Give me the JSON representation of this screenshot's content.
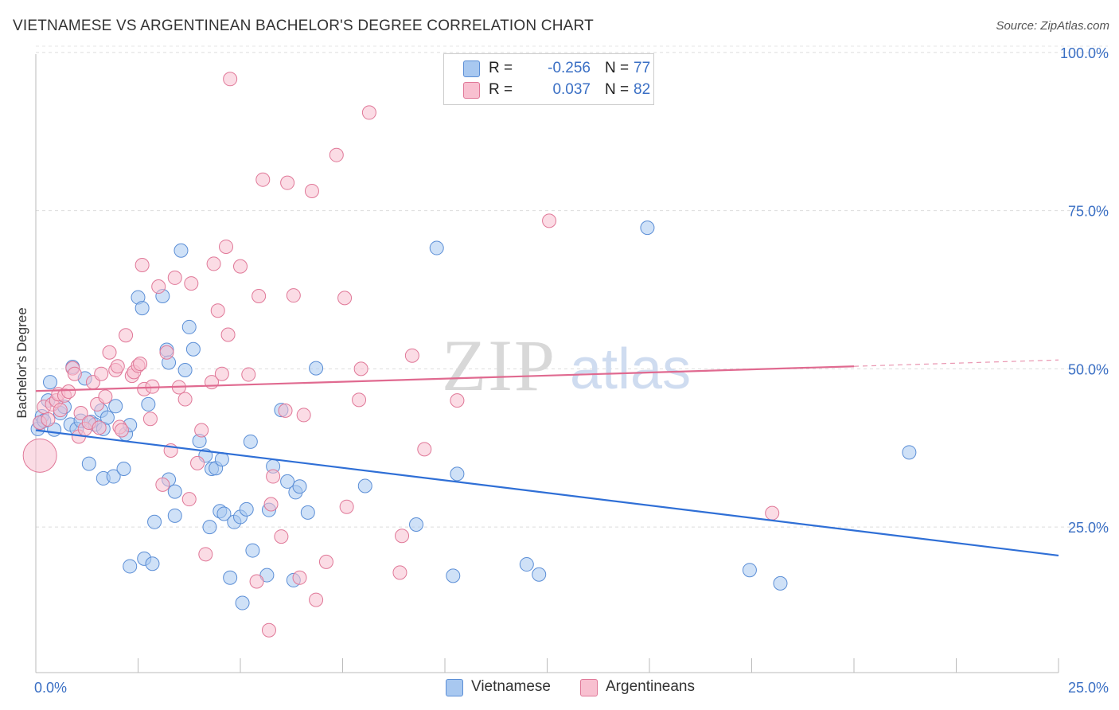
{
  "title": "VIETNAMESE VS ARGENTINEAN BACHELOR'S DEGREE CORRELATION CHART",
  "source": "Source: ZipAtlas.com",
  "watermark": {
    "zip": "ZIP",
    "atlas": "atlas"
  },
  "legend": {
    "r_label": "R =",
    "n_label": "N =",
    "rows": [
      {
        "name": "Vietnamese",
        "r": "-0.256",
        "n": "77",
        "fill": "#a8c8f0",
        "stroke": "#5b8ed6"
      },
      {
        "name": "Argentineans",
        "r": "0.037",
        "n": "82",
        "fill": "#f8c0d0",
        "stroke": "#e07898"
      }
    ]
  },
  "chart_data": {
    "type": "scatter",
    "title": "VIETNAMESE VS ARGENTINEAN BACHELOR'S DEGREE CORRELATION CHART",
    "xlabel": "",
    "ylabel": "Bachelor's Degree",
    "xlim": [
      0,
      25
    ],
    "ylim": [
      2,
      102
    ],
    "x_tick_labels": [
      {
        "value": 0,
        "label": "0.0%"
      },
      {
        "value": 25,
        "label": "25.0%"
      }
    ],
    "y_ticks": [
      {
        "value": 25,
        "label": "25.0%"
      },
      {
        "value": 50,
        "label": "50.0%"
      },
      {
        "value": 75,
        "label": "75.0%"
      },
      {
        "value": 100,
        "label": "100.0%"
      }
    ],
    "series": [
      {
        "name": "Vietnamese",
        "color": "#5b8ed6",
        "fill": "#a8c8f0",
        "trend": {
          "x0": 0,
          "y0": 40.3,
          "x1": 25,
          "y1": 20.5,
          "color": "#2f6fd6"
        },
        "points": [
          [
            0.05,
            40.5
          ],
          [
            0.1,
            41.5
          ],
          [
            0.15,
            42.5
          ],
          [
            0.2,
            41.8
          ],
          [
            0.3,
            45
          ],
          [
            0.35,
            47.9
          ],
          [
            0.45,
            40.4
          ],
          [
            0.6,
            43
          ],
          [
            0.7,
            44
          ],
          [
            0.85,
            41.2
          ],
          [
            0.9,
            50.3
          ],
          [
            1.0,
            40.5
          ],
          [
            1.1,
            41.8
          ],
          [
            1.2,
            48.5
          ],
          [
            1.3,
            35
          ],
          [
            1.35,
            41.6
          ],
          [
            1.45,
            41.2
          ],
          [
            1.6,
            43.4
          ],
          [
            1.65,
            40.5
          ],
          [
            1.75,
            42.3
          ],
          [
            1.65,
            32.7
          ],
          [
            1.9,
            33
          ],
          [
            1.95,
            44.1
          ],
          [
            2.15,
            34.2
          ],
          [
            2.2,
            39.7
          ],
          [
            2.3,
            41.1
          ],
          [
            2.3,
            18.8
          ],
          [
            2.5,
            61.3
          ],
          [
            2.6,
            59.6
          ],
          [
            2.65,
            20
          ],
          [
            2.75,
            44.4
          ],
          [
            2.85,
            19.2
          ],
          [
            2.9,
            25.8
          ],
          [
            3.1,
            61.5
          ],
          [
            3.2,
            53
          ],
          [
            3.25,
            51
          ],
          [
            3.25,
            32.5
          ],
          [
            3.4,
            30.6
          ],
          [
            3.4,
            26.8
          ],
          [
            3.55,
            68.7
          ],
          [
            3.65,
            49.8
          ],
          [
            3.75,
            56.6
          ],
          [
            3.85,
            53.1
          ],
          [
            4.0,
            38.6
          ],
          [
            4.15,
            36.3
          ],
          [
            4.25,
            25
          ],
          [
            4.3,
            34.2
          ],
          [
            4.4,
            34.3
          ],
          [
            4.5,
            27.5
          ],
          [
            4.55,
            35.7
          ],
          [
            4.6,
            27.1
          ],
          [
            4.75,
            17
          ],
          [
            4.85,
            25.8
          ],
          [
            5.0,
            26.6
          ],
          [
            5.05,
            13
          ],
          [
            5.15,
            27.8
          ],
          [
            5.25,
            38.5
          ],
          [
            5.3,
            21.3
          ],
          [
            5.65,
            17.4
          ],
          [
            5.7,
            27.7
          ],
          [
            5.8,
            34.6
          ],
          [
            6.0,
            43.5
          ],
          [
            6.15,
            32.2
          ],
          [
            6.3,
            16.6
          ],
          [
            6.35,
            30.5
          ],
          [
            6.45,
            31.4
          ],
          [
            6.65,
            27.3
          ],
          [
            6.85,
            50.1
          ],
          [
            8.05,
            31.5
          ],
          [
            9.3,
            25.4
          ],
          [
            9.8,
            69.1
          ],
          [
            10.2,
            17.3
          ],
          [
            10.3,
            33.4
          ],
          [
            12.0,
            19.1
          ],
          [
            12.3,
            17.5
          ],
          [
            14.95,
            72.3
          ],
          [
            17.45,
            18.2
          ],
          [
            18.2,
            16.1
          ],
          [
            21.35,
            36.8
          ]
        ]
      },
      {
        "name": "Argentineans",
        "color": "#e07898",
        "fill": "#f8c0d0",
        "trend": {
          "x0": 0,
          "y0": 46.5,
          "x1": 20,
          "y1": 50.4,
          "dash_to_x": 25,
          "dash_to_y": 51.4,
          "color": "#e06a90"
        },
        "big_point": {
          "x": 0.1,
          "y": 36.3
        },
        "points": [
          [
            0.1,
            41.5
          ],
          [
            0.2,
            44
          ],
          [
            0.3,
            42
          ],
          [
            0.4,
            44.4
          ],
          [
            0.5,
            45
          ],
          [
            0.55,
            46
          ],
          [
            0.6,
            43.5
          ],
          [
            0.7,
            45.8
          ],
          [
            0.8,
            46.4
          ],
          [
            0.9,
            50.1
          ],
          [
            0.95,
            49.2
          ],
          [
            1.05,
            39.3
          ],
          [
            1.1,
            43
          ],
          [
            1.2,
            40.5
          ],
          [
            1.3,
            41.5
          ],
          [
            1.4,
            47.9
          ],
          [
            1.5,
            44.4
          ],
          [
            1.55,
            40.7
          ],
          [
            1.6,
            49.2
          ],
          [
            1.7,
            45.6
          ],
          [
            1.8,
            52.6
          ],
          [
            1.95,
            49.8
          ],
          [
            2.0,
            50.4
          ],
          [
            2.05,
            40.8
          ],
          [
            2.1,
            40.3
          ],
          [
            2.2,
            55.3
          ],
          [
            2.35,
            48.9
          ],
          [
            2.4,
            49.5
          ],
          [
            2.5,
            50.5
          ],
          [
            2.55,
            50.8
          ],
          [
            2.6,
            66.4
          ],
          [
            2.65,
            46.8
          ],
          [
            2.8,
            42.1
          ],
          [
            2.85,
            47.2
          ],
          [
            3.0,
            63
          ],
          [
            3.1,
            31.7
          ],
          [
            3.2,
            52.6
          ],
          [
            3.3,
            37.1
          ],
          [
            3.4,
            64.4
          ],
          [
            3.5,
            47.1
          ],
          [
            3.65,
            45.2
          ],
          [
            3.75,
            29.4
          ],
          [
            3.8,
            63.5
          ],
          [
            3.95,
            35.1
          ],
          [
            4.05,
            40.3
          ],
          [
            4.15,
            20.7
          ],
          [
            4.3,
            47.9
          ],
          [
            4.35,
            66.6
          ],
          [
            4.45,
            59.2
          ],
          [
            4.55,
            49.2
          ],
          [
            4.65,
            69.3
          ],
          [
            4.7,
            55.4
          ],
          [
            4.75,
            95.8
          ],
          [
            5.0,
            66.2
          ],
          [
            5.2,
            49.1
          ],
          [
            5.4,
            16.4
          ],
          [
            5.45,
            61.5
          ],
          [
            5.55,
            79.9
          ],
          [
            5.7,
            8.7
          ],
          [
            5.75,
            28.6
          ],
          [
            5.8,
            33
          ],
          [
            6.0,
            23.5
          ],
          [
            6.1,
            43.4
          ],
          [
            6.15,
            79.4
          ],
          [
            6.3,
            61.6
          ],
          [
            6.45,
            17
          ],
          [
            6.55,
            42.7
          ],
          [
            6.75,
            78.1
          ],
          [
            6.85,
            13.5
          ],
          [
            7.1,
            19.5
          ],
          [
            7.35,
            83.8
          ],
          [
            7.55,
            61.2
          ],
          [
            7.6,
            28.2
          ],
          [
            7.9,
            45.1
          ],
          [
            7.95,
            50
          ],
          [
            8.15,
            90.5
          ],
          [
            8.9,
            17.8
          ],
          [
            8.95,
            23.6
          ],
          [
            9.2,
            52.1
          ],
          [
            9.5,
            37.3
          ],
          [
            10.3,
            45
          ],
          [
            12.55,
            73.4
          ],
          [
            18.0,
            27.2
          ]
        ]
      }
    ]
  }
}
